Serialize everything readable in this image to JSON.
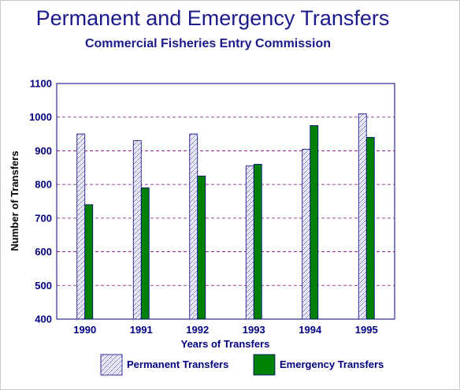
{
  "chart_data": {
    "type": "bar",
    "title": "Permanent and Emergency Transfers",
    "subtitle": "Commercial Fisheries Entry Commission",
    "xlabel": "Years of Transfers",
    "ylabel": "Number of Transfers",
    "categories": [
      "1990",
      "1991",
      "1992",
      "1993",
      "1994",
      "1995"
    ],
    "ylim": [
      400,
      1100
    ],
    "yticks": [
      400,
      500,
      600,
      700,
      800,
      900,
      1000,
      1100
    ],
    "grid": true,
    "legend_position": "bottom",
    "series": [
      {
        "name": "Permanent Transfers",
        "values": [
          950,
          930,
          950,
          855,
          905,
          1010
        ],
        "color": "#ffffff",
        "pattern": "hatched"
      },
      {
        "name": "Emergency Transfers",
        "values": [
          740,
          790,
          825,
          860,
          975,
          940
        ],
        "color": "#008000"
      }
    ]
  }
}
